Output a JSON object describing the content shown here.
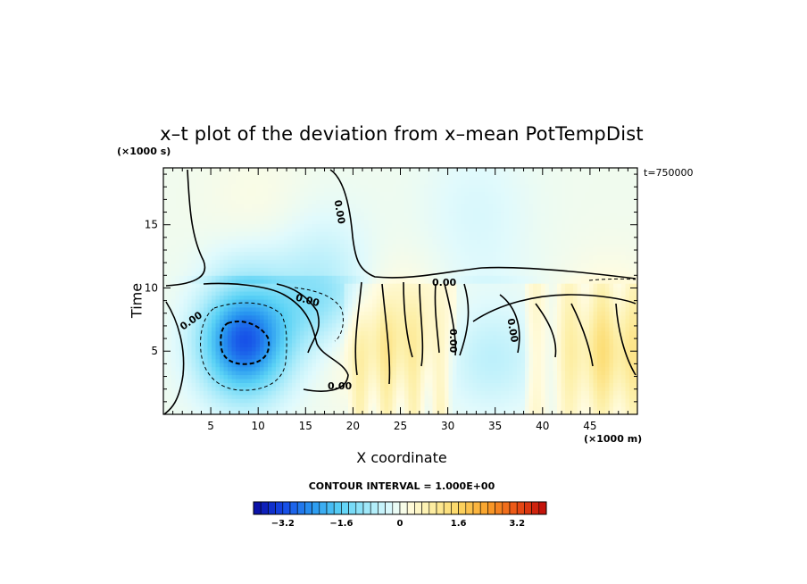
{
  "chart_data": {
    "type": "heatmap",
    "title": "x–t plot of the deviation from x–mean PotTempDist",
    "xlabel": "X coordinate",
    "ylabel": "Time",
    "x_unit": "(×1000 m)",
    "y_unit": "(×1000 s)",
    "time_stamp": "t=750000",
    "xlim": [
      0,
      50
    ],
    "ylim": [
      0,
      19.5
    ],
    "x_ticks": [
      "5",
      "10",
      "15",
      "20",
      "25",
      "30",
      "35",
      "40",
      "45"
    ],
    "y_ticks": [
      "5",
      "10",
      "15"
    ],
    "contour_interval": "CONTOUR INTERVAL = 1.000E+00",
    "contour_labels": [
      "0.00",
      "0.00",
      "0.00",
      "0.00",
      "0.00",
      "0.00",
      "0.00"
    ],
    "colorbar": {
      "range": [
        -4,
        4
      ],
      "tick_labels": [
        "−3.2",
        "−1.6",
        "0",
        "1.6",
        "3.2"
      ],
      "tick_values": [
        -3.2,
        -1.6,
        0,
        1.6,
        3.2
      ]
    },
    "field_features": [
      {
        "kind": "cold",
        "x": 8.5,
        "t": 5.8,
        "amplitude": -3.0
      },
      {
        "kind": "cold",
        "x": 16.5,
        "t": 9.5,
        "amplitude": -1.2
      },
      {
        "kind": "cold",
        "x": 34.5,
        "t": 4.5,
        "amplitude": -0.6
      },
      {
        "kind": "warm",
        "x": 23.5,
        "t": 6.0,
        "amplitude": 0.8
      },
      {
        "kind": "warm",
        "x": 47.0,
        "t": 5.0,
        "amplitude": 0.9
      },
      {
        "kind": "warm",
        "x": 10.0,
        "t": 15.0,
        "amplitude": 0.3
      },
      {
        "kind": "cold",
        "x": 33.0,
        "t": 16.0,
        "amplitude": -0.4
      }
    ]
  },
  "colors": {
    "frame": "#000000",
    "background": "#ffffff"
  }
}
